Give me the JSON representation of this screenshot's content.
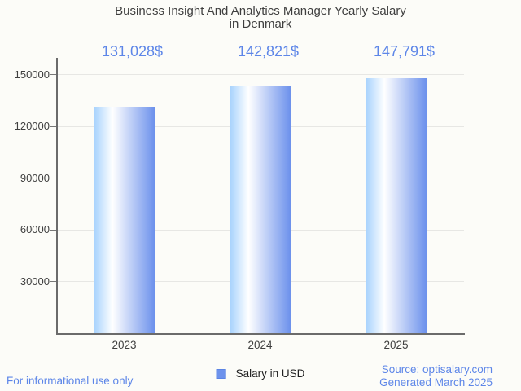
{
  "header": {
    "title_line1": "Business Insight And Analytics Manager Yearly Salary",
    "title_line2": "in Denmark"
  },
  "chart_data": {
    "type": "bar",
    "title": "Business Insight And Analytics Manager Yearly Salary in Denmark",
    "categories": [
      "2023",
      "2024",
      "2025"
    ],
    "series": [
      {
        "name": "Salary in USD",
        "values": [
          131028,
          142821,
          147791
        ]
      }
    ],
    "value_labels": [
      "131,028$",
      "142,821$",
      "147,791$"
    ],
    "y_ticks": [
      30000,
      60000,
      90000,
      120000,
      150000
    ],
    "ylim": [
      0,
      159500
    ],
    "grid": true,
    "legend_position": "bottom",
    "xlabel": "",
    "ylabel": ""
  },
  "legend": {
    "label": "Salary in USD",
    "swatch_color": "#6d92ec"
  },
  "footer": {
    "disclaimer": "For informational use only",
    "source_line1": "Source: optisalary.com",
    "source_line2": "Generated March 2025"
  },
  "colors": {
    "accent_blue": "#5d86e8",
    "bar_gradient_left": "#a9d3fd",
    "bar_gradient_mid": "#ffffff",
    "bar_gradient_right": "#6c91ec",
    "axis": "#6b6b6b",
    "gridline": "#e7e7e4",
    "text_dark": "#3f3f3f",
    "background": "#fcfcf8"
  }
}
